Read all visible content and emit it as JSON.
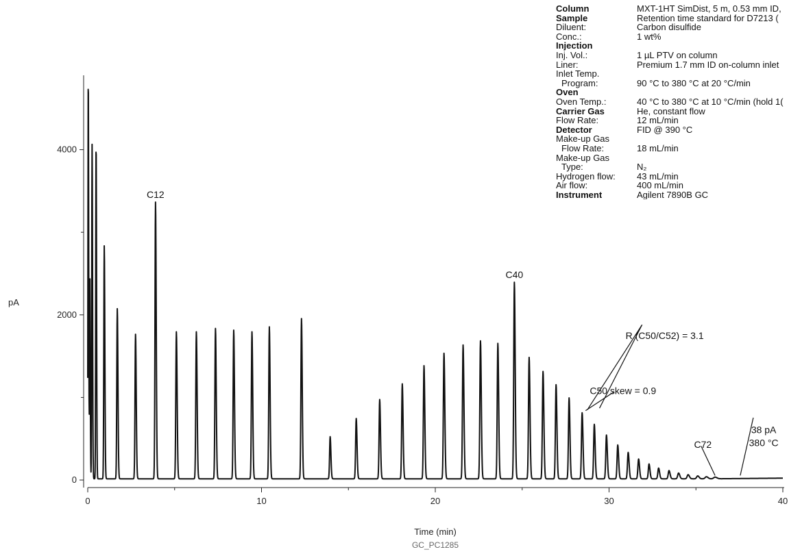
{
  "figure_id": "GC_PC1285",
  "conditions": [
    {
      "label": "Column",
      "value": "MXT-1HT SimDist, 5 m, 0.53 mm ID,",
      "bold": true
    },
    {
      "label": "Sample",
      "value": "Retention time standard for D7213 (",
      "bold": true
    },
    {
      "label": "Diluent:",
      "value": "Carbon disulfide"
    },
    {
      "label": "Conc.:",
      "value": "1 wt%"
    },
    {
      "label": "Injection",
      "value": "",
      "bold": true
    },
    {
      "label": "Inj. Vol.:",
      "value": "1 µL PTV on column"
    },
    {
      "label": "Liner:",
      "value": "Premium 1.7 mm ID on-column inlet"
    },
    {
      "label": "Inlet Temp.",
      "value": ""
    },
    {
      "label": "Program:",
      "value": "90 °C to 380 °C at 20 °C/min",
      "indent": true
    },
    {
      "label": "Oven",
      "value": "",
      "bold": true
    },
    {
      "label": "Oven Temp.:",
      "value": "40 °C to 380 °C at 10 °C/min (hold 1("
    },
    {
      "label": "Carrier Gas",
      "value": "He, constant flow",
      "bold": true
    },
    {
      "label": "Flow Rate:",
      "value": "12 mL/min"
    },
    {
      "label": "Detector",
      "value": "FID @ 390 °C",
      "bold": true
    },
    {
      "label": "Make-up Gas",
      "value": ""
    },
    {
      "label": "Flow Rate:",
      "value": "18 mL/min",
      "indent": true
    },
    {
      "label": "Make-up Gas",
      "value": ""
    },
    {
      "label": "Type:",
      "value": "N₂",
      "indent": true
    },
    {
      "label": "Hydrogen flow:",
      "value": "43 mL/min"
    },
    {
      "label": "Air flow:",
      "value": "400 mL/min"
    },
    {
      "label": "Instrument",
      "value": "Agilent 7890B GC",
      "bold": true
    }
  ],
  "chart_data": {
    "type": "line",
    "xlabel": "Time (min)",
    "ylabel": "pA",
    "xlim": [
      0,
      40
    ],
    "ylim": [
      0,
      4900
    ],
    "x_ticks": [
      0,
      10,
      20,
      30,
      40
    ],
    "y_ticks": [
      0,
      2000,
      4000
    ],
    "baseline_pA": 15,
    "grid": false,
    "line_color": "#111111",
    "series": [
      {
        "peaks": [
          {
            "x": 0.03,
            "y": 4900,
            "w": 0.018
          },
          {
            "x": 0.12,
            "y": 2470,
            "w": 0.018
          },
          {
            "x": 0.25,
            "y": 4050,
            "w": 0.02
          },
          {
            "x": 0.48,
            "y": 4080,
            "w": 0.02
          },
          {
            "x": 0.95,
            "y": 2820,
            "w": 0.025
          },
          {
            "x": 1.7,
            "y": 2060,
            "w": 0.028
          },
          {
            "x": 2.75,
            "y": 1750,
            "w": 0.03
          },
          {
            "x": 3.9,
            "y": 3350,
            "w": 0.03
          },
          {
            "x": 5.1,
            "y": 1780,
            "w": 0.032
          },
          {
            "x": 6.25,
            "y": 1780,
            "w": 0.032
          },
          {
            "x": 7.35,
            "y": 1820,
            "w": 0.032
          },
          {
            "x": 8.4,
            "y": 1800,
            "w": 0.032
          },
          {
            "x": 9.45,
            "y": 1780,
            "w": 0.032
          },
          {
            "x": 10.45,
            "y": 1840,
            "w": 0.032
          },
          {
            "x": 12.3,
            "y": 1940,
            "w": 0.032
          },
          {
            "x": 13.95,
            "y": 510,
            "w": 0.032
          },
          {
            "x": 15.45,
            "y": 730,
            "w": 0.034
          },
          {
            "x": 16.8,
            "y": 960,
            "w": 0.034
          },
          {
            "x": 18.1,
            "y": 1150,
            "w": 0.034
          },
          {
            "x": 19.35,
            "y": 1370,
            "w": 0.034
          },
          {
            "x": 20.5,
            "y": 1520,
            "w": 0.035
          },
          {
            "x": 21.6,
            "y": 1620,
            "w": 0.035
          },
          {
            "x": 22.6,
            "y": 1670,
            "w": 0.035
          },
          {
            "x": 23.6,
            "y": 1640,
            "w": 0.035
          },
          {
            "x": 24.55,
            "y": 2380,
            "w": 0.035
          },
          {
            "x": 25.4,
            "y": 1470,
            "w": 0.036
          },
          {
            "x": 26.2,
            "y": 1300,
            "w": 0.036
          },
          {
            "x": 26.95,
            "y": 1140,
            "w": 0.036
          },
          {
            "x": 27.7,
            "y": 980,
            "w": 0.036
          },
          {
            "x": 28.45,
            "y": 800,
            "w": 0.037
          },
          {
            "x": 29.15,
            "y": 660,
            "w": 0.037
          },
          {
            "x": 29.85,
            "y": 530,
            "w": 0.038
          },
          {
            "x": 30.5,
            "y": 410,
            "w": 0.038
          },
          {
            "x": 31.1,
            "y": 320,
            "w": 0.039
          },
          {
            "x": 31.7,
            "y": 240,
            "w": 0.04
          },
          {
            "x": 32.3,
            "y": 180,
            "w": 0.04
          },
          {
            "x": 32.85,
            "y": 130,
            "w": 0.042
          },
          {
            "x": 33.45,
            "y": 100,
            "w": 0.045
          },
          {
            "x": 34.0,
            "y": 70,
            "w": 0.05
          },
          {
            "x": 34.55,
            "y": 50,
            "w": 0.055
          },
          {
            "x": 35.1,
            "y": 35,
            "w": 0.06
          },
          {
            "x": 35.6,
            "y": 25,
            "w": 0.07
          },
          {
            "x": 36.1,
            "y": 20,
            "w": 0.08
          }
        ]
      }
    ],
    "peak_labels": [
      {
        "text": "C12",
        "x": 3.9,
        "y": 3350
      },
      {
        "text": "C40",
        "x": 24.55,
        "y": 2380
      }
    ],
    "annotations": [
      {
        "lines": [
          "C50 skew = 0.9"
        ],
        "text_x": 30.8,
        "text_y": 1040,
        "arrows": [
          {
            "from": [
              30.3,
              1070
            ],
            "to": [
              28.65,
              840
            ]
          }
        ]
      },
      {
        "lines": [
          "R (C50/C52) = 3.1"
        ],
        "text_x": 33.2,
        "text_y": 1710,
        "arrows": [
          {
            "from": [
              31.9,
              1880
            ],
            "to": [
              28.75,
              850
            ]
          },
          {
            "from": [
              31.9,
              1880
            ],
            "to": [
              29.45,
              870
            ]
          }
        ]
      },
      {
        "lines": [
          "C72"
        ],
        "text_x": 35.4,
        "text_y": 390,
        "arrows": [
          {
            "from": [
              35.3,
              410
            ],
            "to": [
              36.1,
              55
            ]
          }
        ]
      },
      {
        "lines": [
          "38 pA",
          "380 °C"
        ],
        "text_x": 38.9,
        "text_y": 570,
        "arrows": [
          {
            "from": [
              38.3,
              755
            ],
            "to": [
              37.55,
              55
            ]
          }
        ]
      }
    ]
  }
}
